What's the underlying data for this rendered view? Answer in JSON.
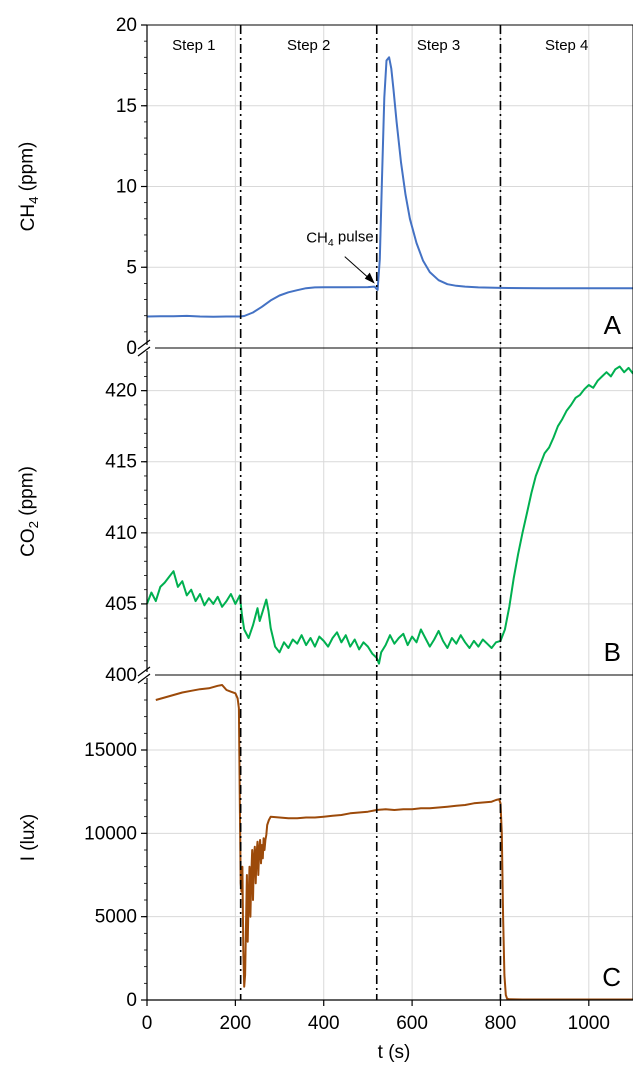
{
  "colors": {
    "ch4": "#4472C4",
    "co2": "#00B050",
    "lux": "#9C4A0A",
    "grid": "#D9D9D9",
    "axis": "#000000",
    "divider": "#000000"
  },
  "chart_data": [
    {
      "id": "A",
      "type": "line",
      "panel_label": "A",
      "ylabel_main": "CH",
      "ylabel_sub": "4",
      "ylabel_tail": " (ppm)",
      "ylim": [
        0,
        20
      ],
      "yticks": [
        0,
        5,
        10,
        15,
        20
      ],
      "xlim": [
        0,
        1100
      ],
      "steps": [
        "Step 1",
        "Step 2",
        "Step 3",
        "Step 4"
      ],
      "annotation": {
        "text_main": "CH",
        "text_sub": "4",
        "text_tail": " pulse",
        "x": 520,
        "y": 3.8
      },
      "series": [
        {
          "points": [
            [
              0,
              1.95
            ],
            [
              30,
              1.97
            ],
            [
              60,
              1.96
            ],
            [
              90,
              1.99
            ],
            [
              120,
              1.95
            ],
            [
              150,
              1.94
            ],
            [
              180,
              1.95
            ],
            [
              210,
              1.95
            ],
            [
              220,
              1.98
            ],
            [
              240,
              2.2
            ],
            [
              260,
              2.55
            ],
            [
              280,
              2.95
            ],
            [
              300,
              3.25
            ],
            [
              320,
              3.45
            ],
            [
              340,
              3.58
            ],
            [
              360,
              3.7
            ],
            [
              380,
              3.75
            ],
            [
              400,
              3.76
            ],
            [
              450,
              3.76
            ],
            [
              500,
              3.77
            ],
            [
              515,
              3.8
            ],
            [
              522,
              3.6
            ],
            [
              527,
              5.5
            ],
            [
              532,
              10.5
            ],
            [
              537,
              15.5
            ],
            [
              542,
              17.8
            ],
            [
              548,
              18.0
            ],
            [
              553,
              17.3
            ],
            [
              558,
              16.0
            ],
            [
              565,
              14.0
            ],
            [
              575,
              11.5
            ],
            [
              585,
              9.5
            ],
            [
              595,
              8.0
            ],
            [
              610,
              6.5
            ],
            [
              625,
              5.4
            ],
            [
              640,
              4.7
            ],
            [
              660,
              4.2
            ],
            [
              680,
              3.95
            ],
            [
              700,
              3.85
            ],
            [
              720,
              3.8
            ],
            [
              750,
              3.75
            ],
            [
              800,
              3.72
            ],
            [
              850,
              3.71
            ],
            [
              900,
              3.7
            ],
            [
              950,
              3.7
            ],
            [
              1000,
              3.7
            ],
            [
              1050,
              3.7
            ],
            [
              1100,
              3.7
            ]
          ]
        }
      ]
    },
    {
      "id": "B",
      "type": "line",
      "panel_label": "B",
      "ylabel_main": "CO",
      "ylabel_sub": "2",
      "ylabel_tail": " (ppm)",
      "ylim": [
        400,
        423
      ],
      "yticks": [
        400,
        405,
        410,
        415,
        420
      ],
      "xlim": [
        0,
        1100
      ],
      "series": [
        {
          "points": [
            [
              0,
              405.0
            ],
            [
              10,
              405.8
            ],
            [
              20,
              405.2
            ],
            [
              30,
              406.2
            ],
            [
              40,
              406.5
            ],
            [
              50,
              406.9
            ],
            [
              60,
              407.3
            ],
            [
              70,
              406.2
            ],
            [
              80,
              406.6
            ],
            [
              90,
              405.6
            ],
            [
              100,
              406.0
            ],
            [
              110,
              405.2
            ],
            [
              120,
              405.7
            ],
            [
              130,
              404.9
            ],
            [
              140,
              405.4
            ],
            [
              150,
              405.0
            ],
            [
              160,
              405.5
            ],
            [
              170,
              404.8
            ],
            [
              180,
              405.2
            ],
            [
              190,
              405.7
            ],
            [
              200,
              405.0
            ],
            [
              210,
              405.6
            ],
            [
              215,
              404.2
            ],
            [
              220,
              403.2
            ],
            [
              230,
              402.6
            ],
            [
              240,
              403.5
            ],
            [
              250,
              404.7
            ],
            [
              255,
              403.8
            ],
            [
              260,
              404.3
            ],
            [
              270,
              405.3
            ],
            [
              275,
              404.5
            ],
            [
              280,
              403.3
            ],
            [
              290,
              402.0
            ],
            [
              300,
              401.6
            ],
            [
              310,
              402.3
            ],
            [
              320,
              401.9
            ],
            [
              330,
              402.5
            ],
            [
              340,
              402.2
            ],
            [
              350,
              402.8
            ],
            [
              360,
              402.1
            ],
            [
              370,
              402.6
            ],
            [
              380,
              402.0
            ],
            [
              390,
              402.7
            ],
            [
              400,
              402.4
            ],
            [
              410,
              402.0
            ],
            [
              420,
              402.6
            ],
            [
              430,
              403.0
            ],
            [
              440,
              402.3
            ],
            [
              450,
              402.8
            ],
            [
              460,
              402.0
            ],
            [
              470,
              402.5
            ],
            [
              480,
              401.8
            ],
            [
              490,
              402.3
            ],
            [
              500,
              402.0
            ],
            [
              510,
              401.5
            ],
            [
              520,
              401.2
            ],
            [
              525,
              400.8
            ],
            [
              530,
              401.6
            ],
            [
              540,
              402.1
            ],
            [
              550,
              402.8
            ],
            [
              560,
              402.2
            ],
            [
              570,
              402.6
            ],
            [
              580,
              402.9
            ],
            [
              590,
              402.1
            ],
            [
              600,
              402.7
            ],
            [
              610,
              402.3
            ],
            [
              620,
              403.2
            ],
            [
              630,
              402.6
            ],
            [
              640,
              402.0
            ],
            [
              650,
              402.5
            ],
            [
              660,
              403.1
            ],
            [
              670,
              402.4
            ],
            [
              680,
              401.9
            ],
            [
              690,
              402.6
            ],
            [
              700,
              402.2
            ],
            [
              710,
              402.8
            ],
            [
              720,
              402.3
            ],
            [
              730,
              401.9
            ],
            [
              740,
              402.4
            ],
            [
              750,
              402.0
            ],
            [
              760,
              402.5
            ],
            [
              770,
              402.2
            ],
            [
              780,
              401.9
            ],
            [
              790,
              402.3
            ],
            [
              800,
              402.4
            ],
            [
              810,
              403.2
            ],
            [
              820,
              404.8
            ],
            [
              830,
              406.8
            ],
            [
              840,
              408.5
            ],
            [
              850,
              410.0
            ],
            [
              860,
              411.4
            ],
            [
              870,
              412.8
            ],
            [
              880,
              414.0
            ],
            [
              890,
              414.8
            ],
            [
              900,
              415.6
            ],
            [
              910,
              416.0
            ],
            [
              920,
              416.7
            ],
            [
              930,
              417.5
            ],
            [
              940,
              418.0
            ],
            [
              950,
              418.6
            ],
            [
              960,
              419.0
            ],
            [
              970,
              419.5
            ],
            [
              980,
              419.7
            ],
            [
              990,
              420.1
            ],
            [
              1000,
              420.4
            ],
            [
              1010,
              420.2
            ],
            [
              1020,
              420.7
            ],
            [
              1030,
              421.0
            ],
            [
              1040,
              421.3
            ],
            [
              1050,
              421.0
            ],
            [
              1060,
              421.5
            ],
            [
              1070,
              421.7
            ],
            [
              1080,
              421.3
            ],
            [
              1090,
              421.6
            ],
            [
              1100,
              421.2
            ]
          ]
        }
      ]
    },
    {
      "id": "C",
      "type": "line",
      "panel_label": "C",
      "ylabel_main": "I (lux)",
      "ylabel_sub": "",
      "ylabel_tail": "",
      "ylim": [
        0,
        19500
      ],
      "yticks": [
        0,
        5000,
        10000,
        15000
      ],
      "xlim": [
        0,
        1100
      ],
      "xticks": [
        0,
        200,
        400,
        600,
        800,
        1000
      ],
      "xlabel": "t (s)",
      "series": [
        {
          "points": [
            [
              20,
              18000
            ],
            [
              40,
              18150
            ],
            [
              60,
              18300
            ],
            [
              80,
              18450
            ],
            [
              100,
              18550
            ],
            [
              120,
              18650
            ],
            [
              140,
              18700
            ],
            [
              160,
              18850
            ],
            [
              170,
              18900
            ],
            [
              180,
              18600
            ],
            [
              190,
              18500
            ],
            [
              200,
              18400
            ],
            [
              205,
              18100
            ],
            [
              208,
              17500
            ],
            [
              210,
              12000
            ],
            [
              212,
              7000
            ],
            [
              214,
              6500
            ],
            [
              216,
              8000
            ],
            [
              218,
              3000
            ],
            [
              220,
              800
            ],
            [
              222,
              1500
            ],
            [
              224,
              4500
            ],
            [
              226,
              7500
            ],
            [
              228,
              3500
            ],
            [
              230,
              6000
            ],
            [
              232,
              8000
            ],
            [
              234,
              5000
            ],
            [
              236,
              7500
            ],
            [
              238,
              9000
            ],
            [
              240,
              6000
            ],
            [
              242,
              8500
            ],
            [
              244,
              9200
            ],
            [
              246,
              7000
            ],
            [
              248,
              8800
            ],
            [
              250,
              9500
            ],
            [
              252,
              7500
            ],
            [
              254,
              9000
            ],
            [
              256,
              9600
            ],
            [
              258,
              8200
            ],
            [
              260,
              9300
            ],
            [
              262,
              8500
            ],
            [
              264,
              9700
            ],
            [
              266,
              9000
            ],
            [
              268,
              9600
            ],
            [
              270,
              9900
            ],
            [
              272,
              10500
            ],
            [
              276,
              10800
            ],
            [
              280,
              11000
            ],
            [
              300,
              10950
            ],
            [
              320,
              10900
            ],
            [
              340,
              10900
            ],
            [
              360,
              10950
            ],
            [
              380,
              10950
            ],
            [
              400,
              11000
            ],
            [
              420,
              11050
            ],
            [
              440,
              11100
            ],
            [
              460,
              11200
            ],
            [
              480,
              11250
            ],
            [
              500,
              11300
            ],
            [
              520,
              11400
            ],
            [
              540,
              11450
            ],
            [
              560,
              11400
            ],
            [
              580,
              11450
            ],
            [
              600,
              11450
            ],
            [
              620,
              11500
            ],
            [
              640,
              11500
            ],
            [
              660,
              11550
            ],
            [
              680,
              11600
            ],
            [
              700,
              11650
            ],
            [
              720,
              11700
            ],
            [
              740,
              11800
            ],
            [
              760,
              11850
            ],
            [
              780,
              11900
            ],
            [
              790,
              12000
            ],
            [
              797,
              12050
            ],
            [
              800,
              11800
            ],
            [
              803,
              10000
            ],
            [
              806,
              5000
            ],
            [
              809,
              1500
            ],
            [
              812,
              300
            ],
            [
              815,
              80
            ],
            [
              820,
              40
            ],
            [
              850,
              30
            ],
            [
              900,
              30
            ],
            [
              950,
              30
            ],
            [
              1000,
              30
            ],
            [
              1050,
              30
            ],
            [
              1100,
              30
            ]
          ]
        }
      ]
    }
  ],
  "dividers": [
    212,
    520,
    800
  ]
}
